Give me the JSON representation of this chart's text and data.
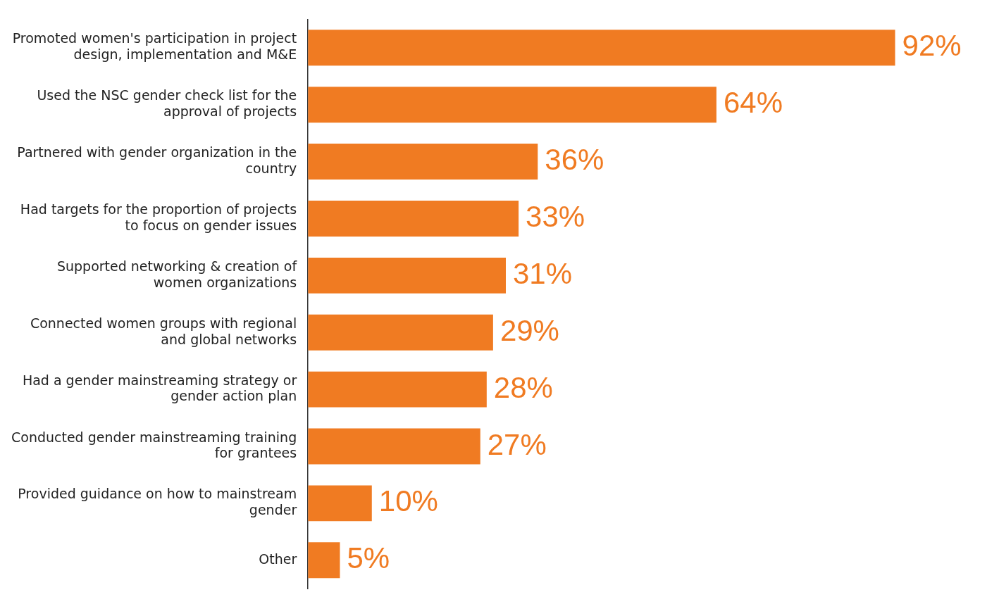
{
  "chart_data": {
    "type": "bar",
    "orientation": "horizontal",
    "categories": [
      "Promoted women's participation in project design, implementation and M&E",
      "Used the NSC gender check list for the approval of projects",
      "Partnered with gender organization in the country",
      "Had targets for the proportion of projects to focus on gender issues",
      "Supported networking & creation of women organizations",
      "Connected women groups with regional and global networks",
      "Had a gender mainstreaming strategy or gender action plan",
      "Conducted gender mainstreaming training for grantees",
      "Provided guidance on how to mainstream gender",
      "Other"
    ],
    "values": [
      92,
      64,
      36,
      33,
      31,
      29,
      28,
      27,
      10,
      5
    ],
    "value_labels": [
      "92%",
      "64%",
      "36%",
      "33%",
      "31%",
      "29%",
      "28%",
      "27%",
      "10%",
      "5%"
    ],
    "color": "#f07b22"
  }
}
